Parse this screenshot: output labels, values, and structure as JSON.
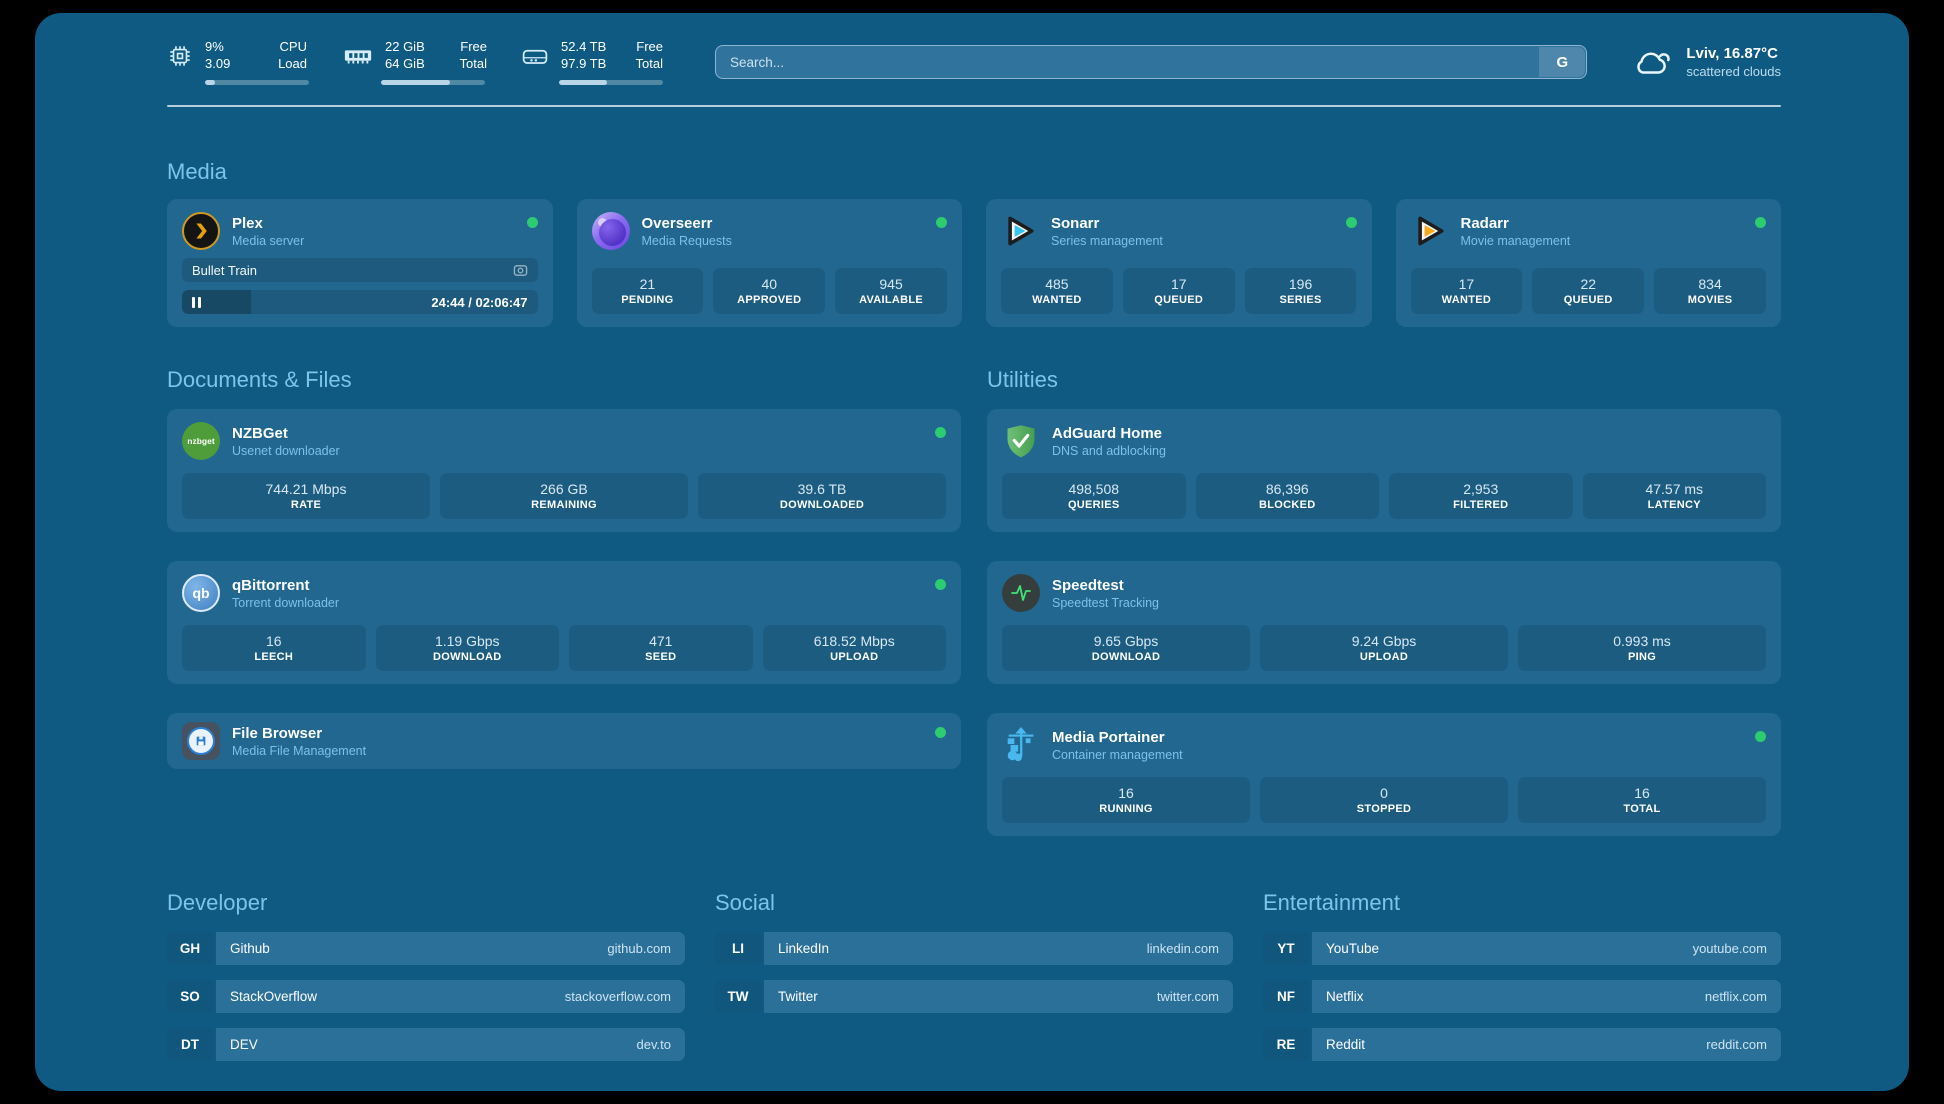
{
  "topbar": {
    "system": [
      {
        "name": "cpu",
        "value1": "9%",
        "value2": "3.09",
        "label1": "CPU",
        "label2": "Load",
        "progress_pct": 10
      },
      {
        "name": "memory",
        "value1": "22 GiB",
        "value2": "64 GiB",
        "label1": "Free",
        "label2": "Total",
        "progress_pct": 66
      },
      {
        "name": "storage",
        "value1": "52.4 TB",
        "value2": "97.9 TB",
        "label1": "Free",
        "label2": "Total",
        "progress_pct": 46
      }
    ],
    "search": {
      "placeholder": "Search...",
      "button_label": "G"
    },
    "weather": {
      "title": "Lviv, 16.87°C",
      "subtitle": "scattered clouds"
    }
  },
  "media": {
    "title": "Media",
    "plex": {
      "name": "Plex",
      "subtitle": "Media server",
      "now_playing": "Bullet Train",
      "time_display": "24:44 / 02:06:47",
      "progress_pct": 19.5
    },
    "overseerr": {
      "name": "Overseerr",
      "subtitle": "Media Requests",
      "stats": [
        {
          "value": "21",
          "label": "PENDING"
        },
        {
          "value": "40",
          "label": "APPROVED"
        },
        {
          "value": "945",
          "label": "AVAILABLE"
        }
      ]
    },
    "sonarr": {
      "name": "Sonarr",
      "subtitle": "Series management",
      "stats": [
        {
          "value": "485",
          "label": "WANTED"
        },
        {
          "value": "17",
          "label": "QUEUED"
        },
        {
          "value": "196",
          "label": "SERIES"
        }
      ]
    },
    "radarr": {
      "name": "Radarr",
      "subtitle": "Movie management",
      "stats": [
        {
          "value": "17",
          "label": "WANTED"
        },
        {
          "value": "22",
          "label": "QUEUED"
        },
        {
          "value": "834",
          "label": "MOVIES"
        }
      ]
    }
  },
  "documents": {
    "title": "Documents & Files",
    "nzbget": {
      "name": "NZBGet",
      "subtitle": "Usenet downloader",
      "icon_text": "nzbget",
      "stats": [
        {
          "value": "744.21 Mbps",
          "label": "RATE"
        },
        {
          "value": "266 GB",
          "label": "REMAINING"
        },
        {
          "value": "39.6 TB",
          "label": "DOWNLOADED"
        }
      ]
    },
    "qbittorrent": {
      "name": "qBittorrent",
      "subtitle": "Torrent downloader",
      "icon_text": "qb",
      "stats": [
        {
          "value": "16",
          "label": "LEECH"
        },
        {
          "value": "1.19 Gbps",
          "label": "DOWNLOAD"
        },
        {
          "value": "471",
          "label": "SEED"
        },
        {
          "value": "618.52 Mbps",
          "label": "UPLOAD"
        }
      ]
    },
    "filebrowser": {
      "name": "File Browser",
      "subtitle": "Media File Management"
    }
  },
  "utilities": {
    "title": "Utilities",
    "adguard": {
      "name": "AdGuard Home",
      "subtitle": "DNS and adblocking",
      "stats": [
        {
          "value": "498,508",
          "label": "QUERIES"
        },
        {
          "value": "86,396",
          "label": "BLOCKED"
        },
        {
          "value": "2,953",
          "label": "FILTERED"
        },
        {
          "value": "47.57 ms",
          "label": "LATENCY"
        }
      ]
    },
    "speedtest": {
      "name": "Speedtest",
      "subtitle": "Speedtest Tracking",
      "stats": [
        {
          "value": "9.65 Gbps",
          "label": "DOWNLOAD"
        },
        {
          "value": "9.24 Gbps",
          "label": "UPLOAD"
        },
        {
          "value": "0.993 ms",
          "label": "PING"
        }
      ]
    },
    "portainer": {
      "name": "Media Portainer",
      "subtitle": "Container management",
      "stats": [
        {
          "value": "16",
          "label": "RUNNING"
        },
        {
          "value": "0",
          "label": "STOPPED"
        },
        {
          "value": "16",
          "label": "TOTAL"
        }
      ]
    }
  },
  "links": {
    "developer": {
      "title": "Developer",
      "items": [
        {
          "tag": "GH",
          "name": "Github",
          "url": "github.com"
        },
        {
          "tag": "SO",
          "name": "StackOverflow",
          "url": "stackoverflow.com"
        },
        {
          "tag": "DT",
          "name": "DEV",
          "url": "dev.to"
        }
      ]
    },
    "social": {
      "title": "Social",
      "items": [
        {
          "tag": "LI",
          "name": "LinkedIn",
          "url": "linkedin.com"
        },
        {
          "tag": "TW",
          "name": "Twitter",
          "url": "twitter.com"
        }
      ]
    },
    "entertainment": {
      "title": "Entertainment",
      "items": [
        {
          "tag": "YT",
          "name": "YouTube",
          "url": "youtube.com"
        },
        {
          "tag": "NF",
          "name": "Netflix",
          "url": "netflix.com"
        },
        {
          "tag": "RE",
          "name": "Reddit",
          "url": "reddit.com"
        }
      ]
    }
  },
  "colors": {
    "background": "#0e5a82",
    "card": "#216790",
    "status_green": "#2ecc71",
    "heading": "#7dc4ec"
  }
}
